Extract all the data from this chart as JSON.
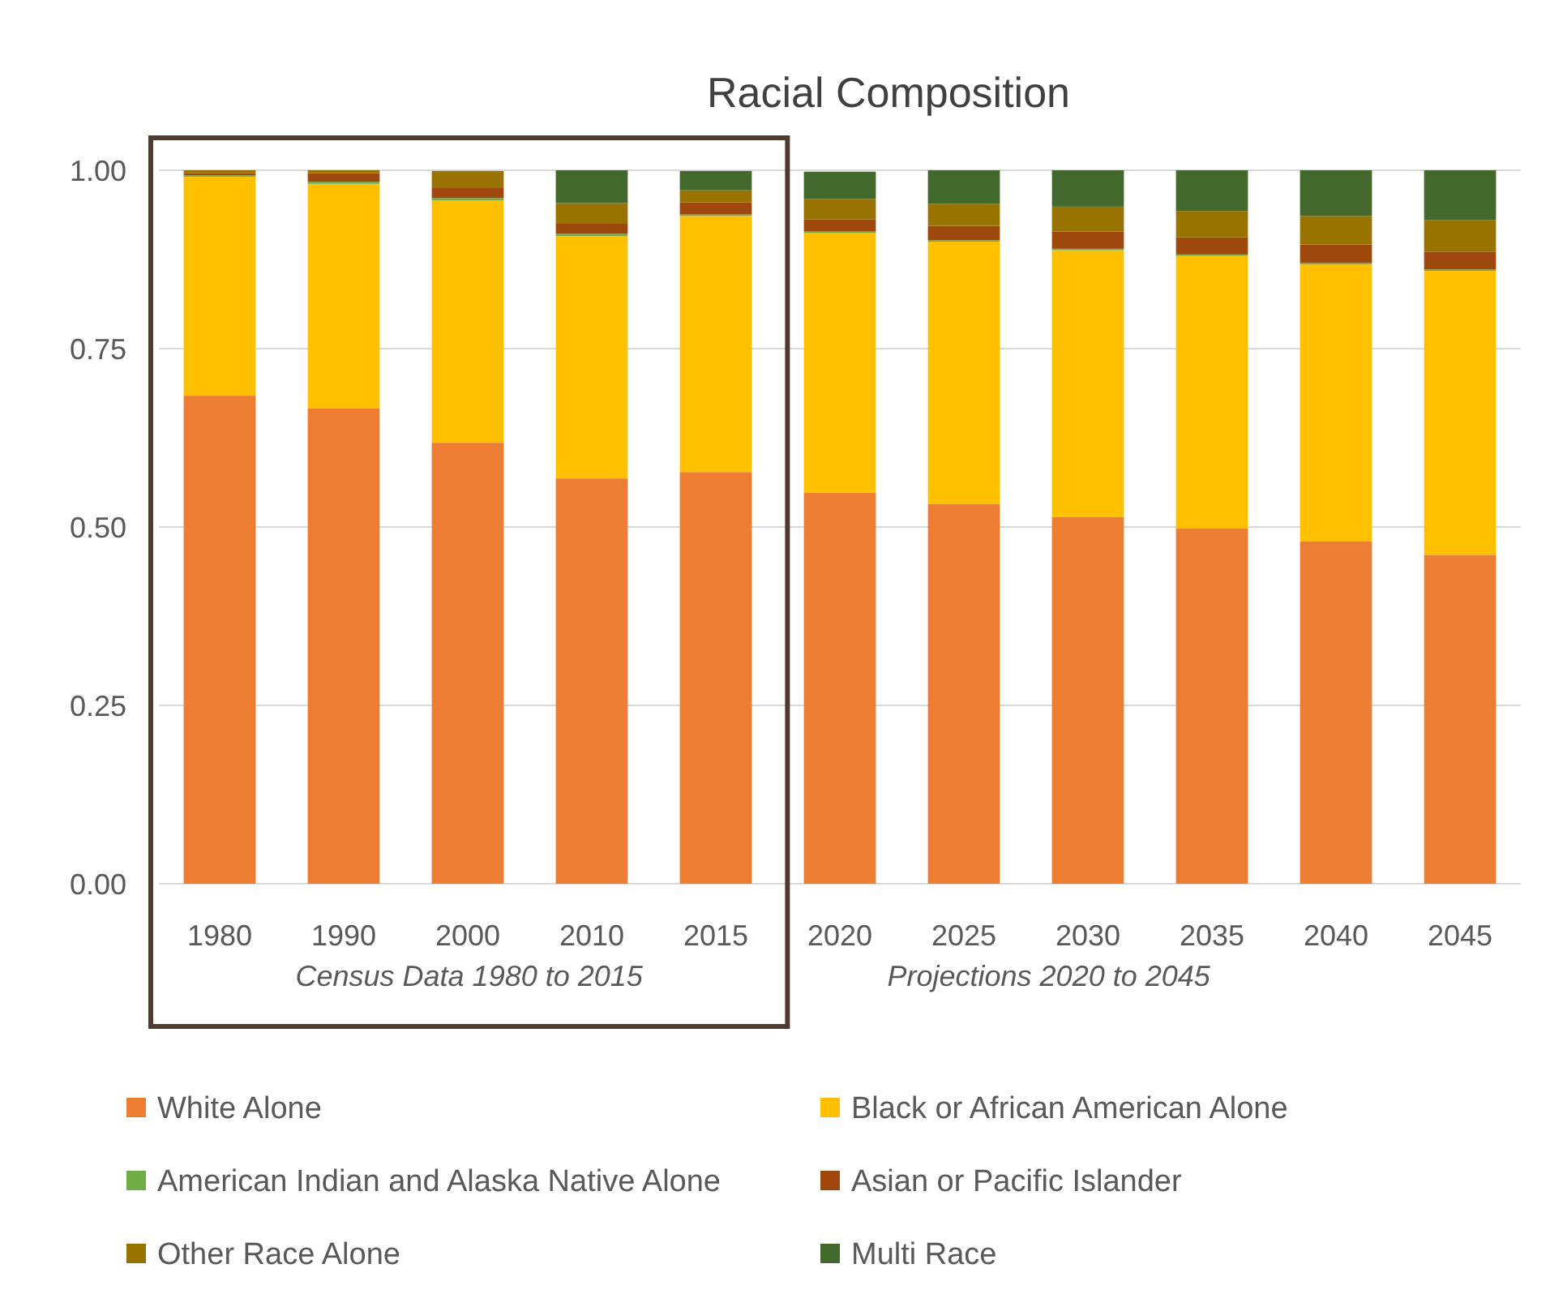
{
  "chart_data": {
    "type": "bar",
    "title": "Racial Composition",
    "stacked": true,
    "categories": [
      "1980",
      "1990",
      "2000",
      "2010",
      "2015",
      "2020",
      "2025",
      "2030",
      "2035",
      "2040",
      "2045"
    ],
    "series": [
      {
        "name": "White Alone",
        "color": "#ed7d31",
        "values": [
          0.684,
          0.666,
          0.618,
          0.568,
          0.577,
          0.548,
          0.532,
          0.514,
          0.498,
          0.48,
          0.461
        ]
      },
      {
        "name": "Black or African American Alone",
        "color": "#ffc000",
        "values": [
          0.307,
          0.315,
          0.34,
          0.34,
          0.359,
          0.364,
          0.368,
          0.374,
          0.382,
          0.388,
          0.398
        ]
      },
      {
        "name": "American Indian and Alaska Native Alone",
        "color": "#70ad47",
        "values": [
          0.002,
          0.003,
          0.003,
          0.003,
          0.002,
          0.002,
          0.002,
          0.002,
          0.002,
          0.002,
          0.002
        ]
      },
      {
        "name": "Asian or Pacific Islander",
        "color": "#9e480e",
        "values": [
          0.003,
          0.012,
          0.014,
          0.014,
          0.017,
          0.017,
          0.02,
          0.024,
          0.024,
          0.026,
          0.025
        ]
      },
      {
        "name": "Other Race Alone",
        "color": "#997300",
        "values": [
          0.004,
          0.004,
          0.024,
          0.029,
          0.017,
          0.029,
          0.031,
          0.035,
          0.037,
          0.04,
          0.044
        ]
      },
      {
        "name": "Multi Race",
        "color": "#43682b",
        "values": [
          0,
          0,
          0,
          0.046,
          0.027,
          0.038,
          0.047,
          0.051,
          0.057,
          0.064,
          0.07
        ]
      }
    ],
    "ylim": [
      0,
      1
    ],
    "yticks": [
      {
        "value": 0,
        "label": "0.00"
      },
      {
        "value": 0.25,
        "label": "0.25"
      },
      {
        "value": 0.5,
        "label": "0.50"
      },
      {
        "value": 0.75,
        "label": "0.75"
      },
      {
        "value": 1,
        "label": "1.00"
      }
    ],
    "grid": "y",
    "legend": "bottom",
    "annotations": [
      "Census Data 1980 to 2015",
      "Projections 2020 to 2045"
    ]
  }
}
